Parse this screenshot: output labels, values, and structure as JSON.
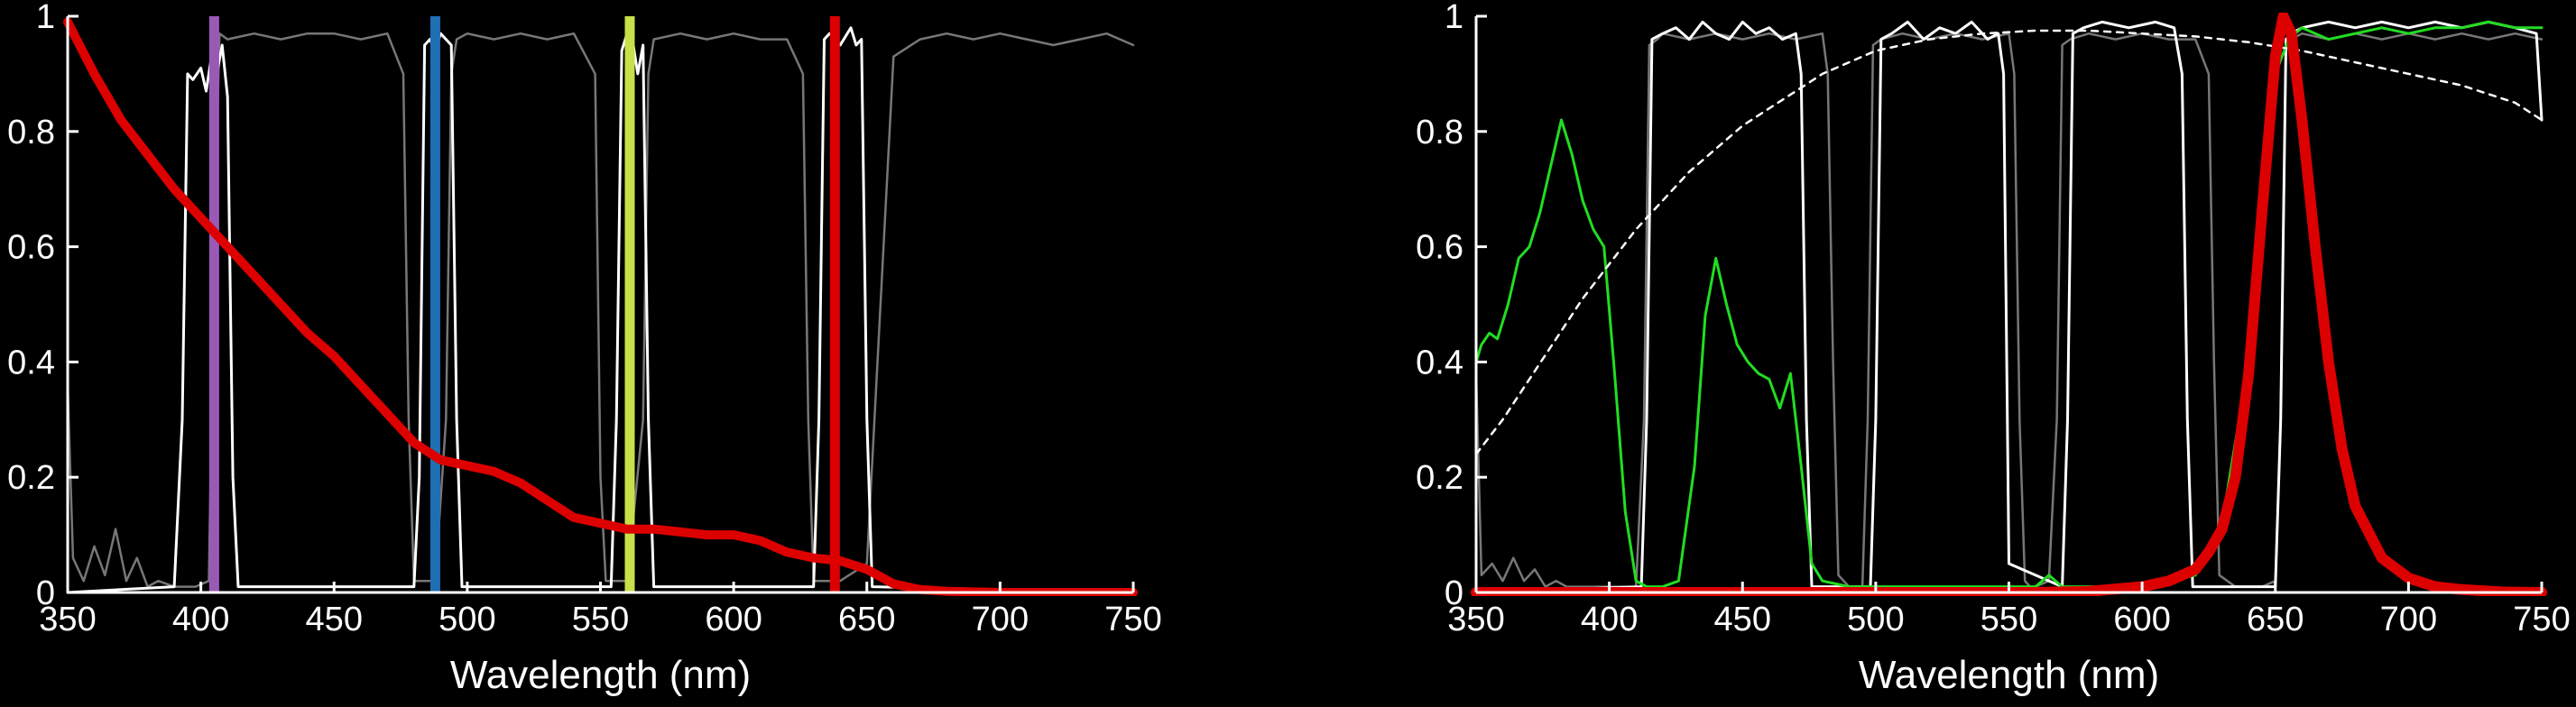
{
  "chart_data": [
    {
      "type": "line",
      "xlabel": "Wavelength (nm)",
      "ylabel": "",
      "xlim": [
        350,
        750
      ],
      "ylim": [
        0,
        1
      ],
      "x_ticks": [
        "350",
        "400",
        "450",
        "500",
        "550",
        "600",
        "650",
        "700",
        "750"
      ],
      "y_ticks": [
        "0",
        "0.2",
        "0.4",
        "0.6",
        "0.8",
        "1"
      ],
      "grid": false,
      "legend": "none",
      "colors": {
        "gray": "#777777",
        "white": "#ffffff",
        "red": "#dd0000"
      },
      "series": [
        {
          "role": "gray-passband",
          "x": [
            350,
            352,
            356,
            360,
            364,
            368,
            372,
            376,
            380,
            384,
            390,
            398,
            403,
            405,
            407,
            410,
            420,
            430,
            440,
            450,
            460,
            470,
            476,
            478,
            480,
            482,
            488,
            492,
            494,
            496,
            500,
            510,
            520,
            530,
            540,
            548,
            550,
            552,
            556,
            560,
            566,
            568,
            570,
            580,
            590,
            600,
            610,
            620,
            626,
            628,
            630,
            632,
            640,
            650,
            660,
            670,
            680,
            690,
            700,
            710,
            720,
            730,
            740,
            750
          ],
          "y": [
            0.36,
            0.06,
            0.02,
            0.08,
            0.03,
            0.11,
            0.02,
            0.06,
            0.01,
            0.02,
            0.01,
            0.01,
            0.02,
            0.6,
            0.97,
            0.96,
            0.97,
            0.96,
            0.97,
            0.97,
            0.96,
            0.97,
            0.9,
            0.3,
            0.02,
            0.02,
            0.02,
            0.3,
            0.9,
            0.96,
            0.97,
            0.96,
            0.97,
            0.96,
            0.97,
            0.9,
            0.2,
            0.02,
            0.02,
            0.02,
            0.3,
            0.9,
            0.96,
            0.97,
            0.96,
            0.97,
            0.96,
            0.96,
            0.9,
            0.3,
            0.02,
            0.02,
            0.02,
            0.05,
            0.93,
            0.96,
            0.97,
            0.96,
            0.97,
            0.96,
            0.95,
            0.96,
            0.97,
            0.95
          ]
        },
        {
          "role": "white-passband",
          "x": [
            350,
            390,
            393,
            395,
            397,
            400,
            402,
            404,
            406,
            408,
            410,
            412,
            414,
            480,
            482,
            484,
            486,
            488,
            490,
            492,
            494,
            496,
            498,
            554,
            556,
            558,
            560,
            562,
            564,
            566,
            568,
            570,
            630,
            632,
            634,
            636,
            640,
            644,
            646,
            648,
            650,
            652,
            750
          ],
          "y": [
            0.0,
            0.01,
            0.3,
            0.9,
            0.89,
            0.91,
            0.87,
            0.93,
            0.9,
            0.95,
            0.86,
            0.2,
            0.01,
            0.01,
            0.2,
            0.95,
            0.96,
            0.94,
            0.97,
            0.96,
            0.95,
            0.3,
            0.01,
            0.01,
            0.3,
            0.94,
            0.97,
            0.96,
            0.9,
            0.95,
            0.3,
            0.01,
            0.01,
            0.3,
            0.96,
            0.97,
            0.95,
            0.98,
            0.95,
            0.96,
            0.3,
            0.01,
            0.0
          ]
        },
        {
          "role": "red-curve",
          "x": [
            350,
            360,
            370,
            380,
            390,
            400,
            410,
            420,
            430,
            440,
            450,
            460,
            470,
            480,
            490,
            500,
            510,
            520,
            530,
            540,
            550,
            560,
            570,
            580,
            590,
            600,
            610,
            620,
            630,
            640,
            650,
            660,
            670,
            680,
            690,
            700,
            710,
            720,
            730,
            740,
            750
          ],
          "y": [
            0.99,
            0.9,
            0.82,
            0.76,
            0.7,
            0.65,
            0.6,
            0.55,
            0.5,
            0.45,
            0.41,
            0.36,
            0.31,
            0.26,
            0.23,
            0.22,
            0.21,
            0.19,
            0.16,
            0.13,
            0.12,
            0.11,
            0.11,
            0.105,
            0.1,
            0.1,
            0.09,
            0.07,
            0.06,
            0.055,
            0.04,
            0.015,
            0.005,
            0.002,
            0.001,
            0.0,
            0.0,
            0.0,
            0.0,
            0.0,
            0.0
          ]
        }
      ],
      "markers": [
        {
          "x": 405,
          "color": "#9b59b6"
        },
        {
          "x": 488,
          "color": "#1f6fb3"
        },
        {
          "x": 561,
          "color": "#c8e04a"
        },
        {
          "x": 638,
          "color": "#dd0000"
        }
      ]
    },
    {
      "type": "line",
      "xlabel": "Wavelength (nm)",
      "ylabel": "",
      "xlim": [
        350,
        750
      ],
      "ylim": [
        0,
        1
      ],
      "x_ticks": [
        "350",
        "400",
        "450",
        "500",
        "550",
        "600",
        "650",
        "700",
        "750"
      ],
      "y_ticks": [
        "0",
        "0.2",
        "0.4",
        "0.6",
        "0.8",
        "1"
      ],
      "grid": false,
      "legend": "none",
      "colors": {
        "gray": "#777777",
        "white": "#ffffff",
        "green": "#22dd22",
        "red": "#dd0000",
        "dotted": "#ffffff"
      },
      "series": [
        {
          "role": "gray-passband",
          "x": [
            350,
            352,
            356,
            360,
            364,
            368,
            372,
            376,
            380,
            384,
            390,
            410,
            413,
            415,
            418,
            420,
            430,
            440,
            450,
            460,
            470,
            480,
            482,
            484,
            486,
            490,
            495,
            497,
            499,
            502,
            510,
            520,
            530,
            540,
            550,
            552,
            554,
            556,
            558,
            560,
            565,
            568,
            570,
            573,
            580,
            590,
            600,
            610,
            620,
            625,
            627,
            629,
            635,
            645,
            650,
            652,
            654,
            656,
            660,
            670,
            680,
            690,
            700,
            710,
            720,
            730,
            740,
            750
          ],
          "y": [
            0.38,
            0.03,
            0.05,
            0.02,
            0.06,
            0.02,
            0.04,
            0.01,
            0.02,
            0.01,
            0.01,
            0.01,
            0.3,
            0.95,
            0.96,
            0.97,
            0.96,
            0.97,
            0.96,
            0.97,
            0.96,
            0.97,
            0.9,
            0.4,
            0.03,
            0.01,
            0.01,
            0.3,
            0.95,
            0.96,
            0.97,
            0.96,
            0.97,
            0.96,
            0.97,
            0.9,
            0.3,
            0.02,
            0.01,
            0.01,
            0.02,
            0.3,
            0.95,
            0.96,
            0.97,
            0.96,
            0.97,
            0.96,
            0.96,
            0.9,
            0.4,
            0.03,
            0.01,
            0.01,
            0.02,
            0.3,
            0.95,
            0.96,
            0.97,
            0.96,
            0.97,
            0.96,
            0.97,
            0.96,
            0.97,
            0.96,
            0.97,
            0.96
          ]
        },
        {
          "role": "white-passband",
          "x": [
            350,
            412,
            414,
            416,
            420,
            425,
            430,
            435,
            440,
            445,
            450,
            455,
            460,
            465,
            470,
            472,
            474,
            476,
            498,
            500,
            502,
            506,
            512,
            518,
            524,
            530,
            536,
            542,
            546,
            548,
            550,
            570,
            572,
            574,
            578,
            585,
            595,
            605,
            612,
            615,
            617,
            619,
            650,
            652,
            654,
            656,
            660,
            670,
            680,
            690,
            700,
            710,
            720,
            730,
            740,
            748,
            750
          ],
          "y": [
            0.0,
            0.01,
            0.3,
            0.96,
            0.97,
            0.98,
            0.96,
            0.99,
            0.97,
            0.96,
            0.99,
            0.97,
            0.98,
            0.96,
            0.97,
            0.9,
            0.3,
            0.01,
            0.01,
            0.3,
            0.96,
            0.97,
            0.99,
            0.96,
            0.98,
            0.97,
            0.99,
            0.96,
            0.97,
            0.9,
            0.05,
            0.01,
            0.3,
            0.97,
            0.98,
            0.99,
            0.98,
            0.99,
            0.98,
            0.9,
            0.3,
            0.01,
            0.01,
            0.3,
            0.96,
            0.97,
            0.98,
            0.99,
            0.98,
            0.99,
            0.98,
            0.99,
            0.98,
            0.99,
            0.98,
            0.97,
            0.82
          ]
        },
        {
          "role": "green-curve",
          "x": [
            350,
            352,
            355,
            358,
            362,
            366,
            370,
            374,
            378,
            382,
            386,
            390,
            394,
            398,
            402,
            406,
            410,
            414,
            420,
            426,
            432,
            436,
            440,
            444,
            448,
            452,
            456,
            460,
            464,
            468,
            472,
            476,
            480,
            490,
            500,
            520,
            540,
            560,
            565,
            570,
            580,
            600,
            620,
            630,
            640,
            645,
            650,
            655,
            660,
            665,
            670,
            680,
            690,
            700,
            710,
            720,
            730,
            740,
            750
          ],
          "y": [
            0.4,
            0.43,
            0.45,
            0.44,
            0.5,
            0.58,
            0.6,
            0.66,
            0.74,
            0.82,
            0.76,
            0.68,
            0.63,
            0.6,
            0.38,
            0.14,
            0.02,
            0.01,
            0.01,
            0.02,
            0.22,
            0.48,
            0.58,
            0.5,
            0.43,
            0.4,
            0.38,
            0.37,
            0.32,
            0.38,
            0.22,
            0.05,
            0.02,
            0.01,
            0.01,
            0.01,
            0.01,
            0.01,
            0.03,
            0.01,
            0.01,
            0.01,
            0.03,
            0.12,
            0.4,
            0.68,
            0.9,
            0.96,
            0.98,
            0.97,
            0.96,
            0.97,
            0.98,
            0.97,
            0.98,
            0.98,
            0.99,
            0.98,
            0.98
          ]
        },
        {
          "role": "dotted-curve",
          "x": [
            350,
            360,
            370,
            380,
            390,
            400,
            410,
            420,
            430,
            440,
            450,
            460,
            470,
            480,
            490,
            500,
            520,
            540,
            560,
            580,
            600,
            620,
            640,
            660,
            680,
            700,
            720,
            740,
            750
          ],
          "y": [
            0.24,
            0.3,
            0.37,
            0.44,
            0.51,
            0.57,
            0.63,
            0.68,
            0.73,
            0.77,
            0.81,
            0.84,
            0.87,
            0.9,
            0.92,
            0.94,
            0.96,
            0.97,
            0.975,
            0.975,
            0.97,
            0.965,
            0.955,
            0.94,
            0.92,
            0.9,
            0.88,
            0.85,
            0.82
          ]
        },
        {
          "role": "red-peak",
          "x": [
            350,
            560,
            580,
            600,
            610,
            620,
            625,
            630,
            635,
            640,
            645,
            650,
            653,
            656,
            660,
            665,
            670,
            675,
            680,
            690,
            700,
            710,
            720,
            735,
            750
          ],
          "y": [
            0.0,
            0.0,
            0.002,
            0.01,
            0.02,
            0.04,
            0.07,
            0.11,
            0.2,
            0.38,
            0.66,
            0.93,
            1.0,
            0.97,
            0.82,
            0.6,
            0.4,
            0.25,
            0.15,
            0.06,
            0.025,
            0.01,
            0.005,
            0.001,
            0.0
          ]
        }
      ]
    }
  ]
}
